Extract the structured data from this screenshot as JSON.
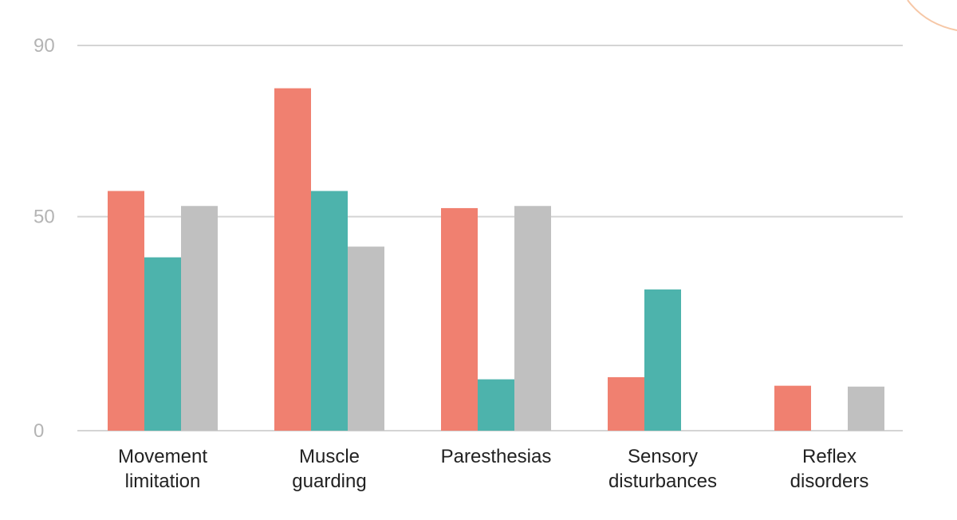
{
  "chart_data": {
    "type": "bar",
    "categories": [
      [
        "Movement",
        "limitation"
      ],
      [
        "Muscle",
        "guarding"
      ],
      [
        "Paresthesias"
      ],
      [
        "Sensory",
        "disturbances"
      ],
      [
        "Reflex",
        "disorders"
      ]
    ],
    "series": [
      {
        "color": "#f08070",
        "values": [
          56,
          80,
          52,
          12.5,
          10.5
        ]
      },
      {
        "color": "#4db3ac",
        "values": [
          40.5,
          56,
          12,
          33,
          0
        ]
      },
      {
        "color": "#c0c0c0",
        "values": [
          52.5,
          43,
          52.5,
          0,
          10.3
        ]
      }
    ],
    "yticks": [
      0,
      50,
      90
    ],
    "ylim": [
      0,
      90
    ],
    "grid": true,
    "title": "",
    "xlabel": "",
    "ylabel": ""
  }
}
